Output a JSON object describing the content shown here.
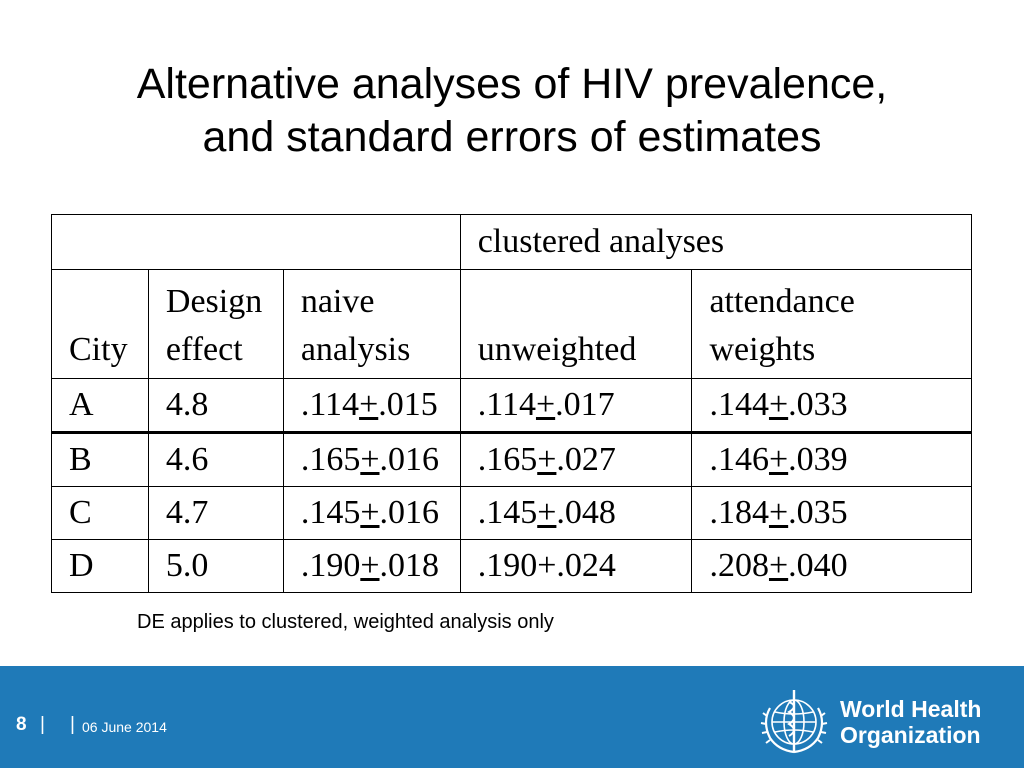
{
  "title": {
    "line1": "Alternative analyses of HIV prevalence,",
    "line2": "and standard errors of estimates"
  },
  "table": {
    "group_header": "clustered analyses",
    "headers": {
      "city": "City",
      "design_line1": "Design",
      "design_line2": "effect",
      "naive_line1": "naive",
      "naive_line2": "analysis",
      "unweighted": "unweighted",
      "attendance_line1": "attendance",
      "attendance_line2": "weights"
    },
    "rows": [
      {
        "city": "A",
        "de": "4.8",
        "naive": {
          "est": ".114",
          "pm": "+",
          "se": ".015"
        },
        "unweighted": {
          "est": ".114",
          "pm": "+",
          "se": ".017"
        },
        "attendance": {
          "est": ".144",
          "pm": "+",
          "se": ".033"
        }
      },
      {
        "city": "B",
        "de": "4.6",
        "naive": {
          "est": ".165",
          "pm": "+",
          "se": ".016"
        },
        "unweighted": {
          "est": ".165",
          "pm": "+",
          "se": ".027"
        },
        "attendance": {
          "est": ".146",
          "pm": "+",
          "se": ".039"
        }
      },
      {
        "city": "C",
        "de": "4.7",
        "naive": {
          "est": ".145",
          "pm": "+",
          "se": ".016"
        },
        "unweighted": {
          "est": ".145",
          "pm": "+",
          "se": ".048"
        },
        "attendance": {
          "est": ".184",
          "pm": "+",
          "se": ".035"
        }
      },
      {
        "city": "D",
        "de": "5.0",
        "naive": {
          "est": ".190",
          "pm": "+",
          "se": ".018"
        },
        "unweighted": {
          "est": ".190",
          "pm": "+",
          "se": ".024"
        },
        "attendance": {
          "est": ".208",
          "pm": "+",
          "se": ".040"
        }
      }
    ]
  },
  "note": "DE applies to clustered, weighted analysis only",
  "footer": {
    "page_number": "8",
    "separator": "|",
    "date": "06 June 2014",
    "org_line1": "World Health",
    "org_line2": "Organization",
    "background_color": "#1f7ab8"
  }
}
